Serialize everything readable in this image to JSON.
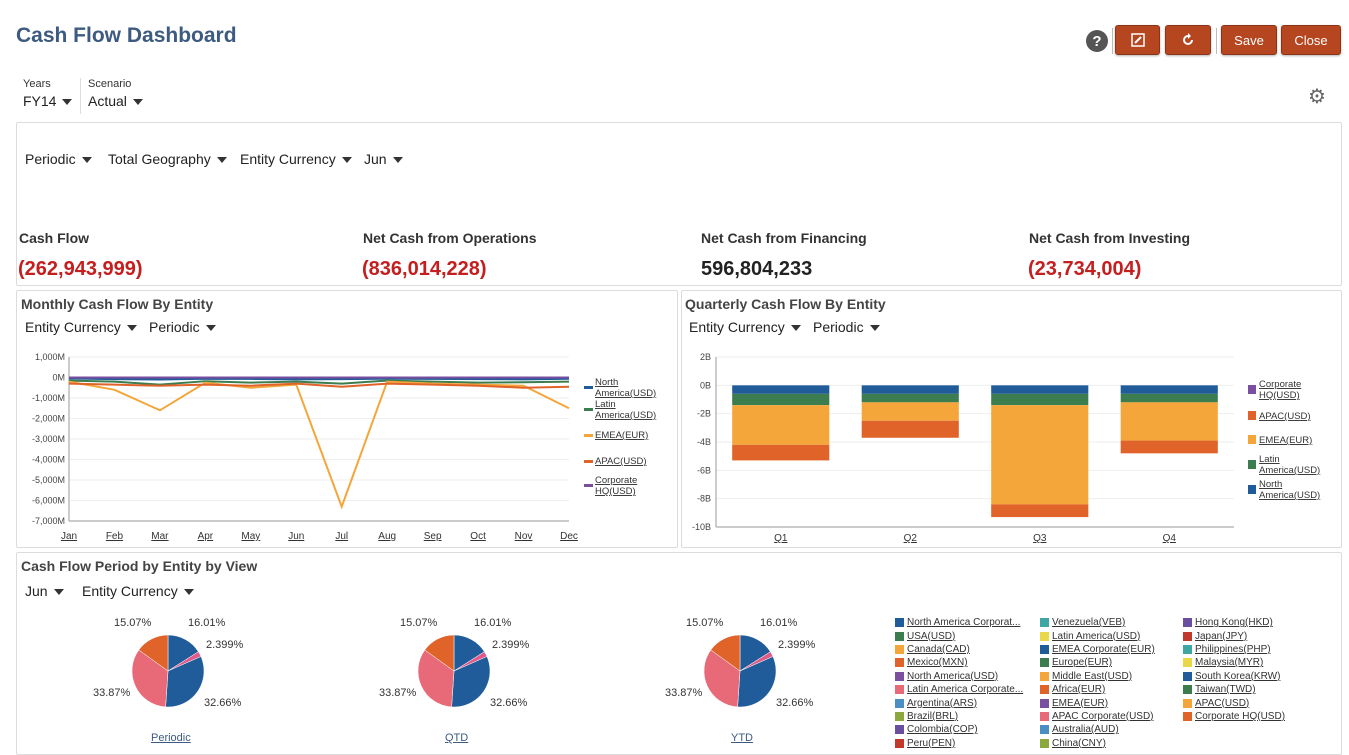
{
  "header": {
    "title": "Cash Flow Dashboard",
    "save": "Save",
    "close": "Close",
    "help": "?"
  },
  "pov": {
    "years_label": "Years",
    "years_value": "FY14",
    "scenario_label": "Scenario",
    "scenario_value": "Actual"
  },
  "filters": [
    "Periodic",
    "Total Geography",
    "Entity Currency",
    "Jun"
  ],
  "kpis": [
    {
      "label": "Cash Flow",
      "value": "(262,943,999)"
    },
    {
      "label": "Net Cash from Operations",
      "value": "(836,014,228)"
    },
    {
      "label": "Net Cash from Financing",
      "value": "596,804,233"
    },
    {
      "label": "Net Cash from Investing",
      "value": "(23,734,004)"
    }
  ],
  "monthly": {
    "title": "Monthly Cash Flow By Entity",
    "filters": [
      "Entity Currency",
      "Periodic"
    ]
  },
  "quarterly": {
    "title": "Quarterly Cash Flow By Entity",
    "filters": [
      "Entity Currency",
      "Periodic"
    ]
  },
  "pies": {
    "title": "Cash Flow Period by Entity by View",
    "filters": [
      "Jun",
      "Entity Currency"
    ],
    "labels": [
      "Periodic",
      "QTD",
      "YTD"
    ],
    "pct": [
      "15.07%",
      "16.01%",
      "2.399%",
      "33.87%",
      "32.66%"
    ]
  },
  "colors": {
    "na": "#1f5c99",
    "la": "#3b7d4f",
    "emea": "#f4a63b",
    "apac": "#e0632a",
    "corp": "#7b4fa0",
    "brand": "#b5461f"
  },
  "chart_data": [
    {
      "type": "line",
      "title": "Monthly Cash Flow By Entity",
      "categories": [
        "Jan",
        "Feb",
        "Mar",
        "Apr",
        "May",
        "Jun",
        "Jul",
        "Aug",
        "Sep",
        "Oct",
        "Nov",
        "Dec"
      ],
      "ylim": [
        -7000,
        1000
      ],
      "yticks": [
        "1,000M",
        "0M",
        "-1,000M",
        "-2,000M",
        "-3,000M",
        "-4,000M",
        "-5,000M",
        "-6,000M",
        "-7,000M"
      ],
      "series": [
        {
          "name": "North America(USD)",
          "color": "#1f5c99",
          "values": [
            -50,
            -80,
            -100,
            -60,
            -70,
            -90,
            -80,
            -60,
            -70,
            -80,
            -90,
            -60
          ]
        },
        {
          "name": "Latin America(USD)",
          "color": "#3b7d4f",
          "values": [
            -150,
            -200,
            -350,
            -180,
            -250,
            -200,
            -300,
            -150,
            -200,
            -250,
            -230,
            -200
          ]
        },
        {
          "name": "EMEA(EUR)",
          "color": "#f4a63b",
          "values": [
            -200,
            -600,
            -1600,
            -250,
            -500,
            -350,
            -6300,
            -200,
            -300,
            -350,
            -400,
            -1500
          ]
        },
        {
          "name": "APAC(USD)",
          "color": "#e0632a",
          "values": [
            -300,
            -350,
            -400,
            -350,
            -400,
            -300,
            -450,
            -300,
            -350,
            -400,
            -500,
            -450
          ]
        },
        {
          "name": "Corporate HQ(USD)",
          "color": "#7b4fa0",
          "values": [
            0,
            0,
            0,
            0,
            0,
            0,
            0,
            0,
            0,
            0,
            0,
            0
          ]
        }
      ]
    },
    {
      "type": "bar",
      "title": "Quarterly Cash Flow By Entity",
      "categories": [
        "Q1",
        "Q2",
        "Q3",
        "Q4"
      ],
      "ylim": [
        -10,
        2
      ],
      "yticks": [
        "2B",
        "0B",
        "-2B",
        "-4B",
        "-6B",
        "-8B",
        "-10B"
      ],
      "series": [
        {
          "name": "North America(USD)",
          "color": "#1f5c99",
          "values": [
            -0.6,
            -0.6,
            -0.6,
            -0.6
          ]
        },
        {
          "name": "Latin America(USD)",
          "color": "#3b7d4f",
          "values": [
            -0.8,
            -0.6,
            -0.8,
            -0.6
          ]
        },
        {
          "name": "EMEA(EUR)",
          "color": "#f4a63b",
          "values": [
            -2.8,
            -1.3,
            -7.0,
            -2.7
          ]
        },
        {
          "name": "APAC(USD)",
          "color": "#e0632a",
          "values": [
            -1.1,
            -1.2,
            -0.9,
            -0.9
          ]
        },
        {
          "name": "Corporate HQ(USD)",
          "color": "#7b4fa0",
          "values": [
            0,
            0,
            0,
            0
          ]
        }
      ]
    },
    {
      "type": "pie",
      "title": "Cash Flow Period by Entity by View",
      "views": [
        "Periodic",
        "QTD",
        "YTD"
      ],
      "slices": [
        {
          "color": "#1f5c99",
          "value": 16.01
        },
        {
          "color": "#e05a8a",
          "value": 2.399
        },
        {
          "color": "#1f5c99",
          "value": 32.66
        },
        {
          "color": "#e86a78",
          "value": 33.87
        },
        {
          "color": "#e0632a",
          "value": 15.07
        }
      ]
    }
  ],
  "legend": {
    "col1": [
      [
        "North America Corporat...",
        "#1f5c99"
      ],
      [
        "USA(USD)",
        "#3b7d4f"
      ],
      [
        "Canada(CAD)",
        "#f4a63b"
      ],
      [
        "Mexico(MXN)",
        "#e0632a"
      ],
      [
        "North America(USD)",
        "#7b4fa0"
      ],
      [
        "Latin America Corporate...",
        "#e86a78"
      ],
      [
        "Argentina(ARS)",
        "#4a8fc4"
      ],
      [
        "Brazil(BRL)",
        "#8aa83c"
      ],
      [
        "Colombia(COP)",
        "#6a4fa0"
      ],
      [
        "Peru(PEN)",
        "#c0392b"
      ]
    ],
    "col2": [
      [
        "Venezuela(VEB)",
        "#3fa7a3"
      ],
      [
        "Latin America(USD)",
        "#e9d84a"
      ],
      [
        "EMEA Corporate(EUR)",
        "#1f5c99"
      ],
      [
        "Europe(EUR)",
        "#3b7d4f"
      ],
      [
        "Middle East(USD)",
        "#f4a63b"
      ],
      [
        "Africa(EUR)",
        "#e0632a"
      ],
      [
        "EMEA(EUR)",
        "#7b4fa0"
      ],
      [
        "APAC Corporate(USD)",
        "#e86a78"
      ],
      [
        "Australia(AUD)",
        "#4a8fc4"
      ],
      [
        "China(CNY)",
        "#8aa83c"
      ]
    ],
    "col3": [
      [
        "Hong Kong(HKD)",
        "#6a4fa0"
      ],
      [
        "Japan(JPY)",
        "#c0392b"
      ],
      [
        "Philippines(PHP)",
        "#3fa7a3"
      ],
      [
        "Malaysia(MYR)",
        "#e9d84a"
      ],
      [
        "South Korea(KRW)",
        "#1f5c99"
      ],
      [
        "Taiwan(TWD)",
        "#3b7d4f"
      ],
      [
        "APAC(USD)",
        "#f4a63b"
      ],
      [
        "Corporate HQ(USD)",
        "#e0632a"
      ]
    ]
  }
}
